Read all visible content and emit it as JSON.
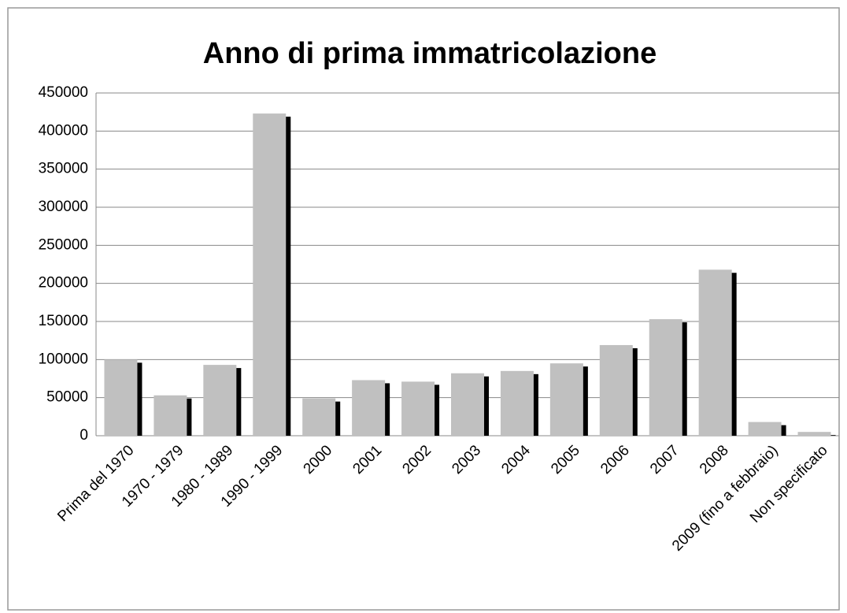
{
  "chart_data": {
    "type": "bar",
    "title": "Anno di prima immatricolazione",
    "categories": [
      "Prima del 1970",
      "1970 - 1979",
      "1980 - 1989",
      "1990 - 1999",
      "2000",
      "2001",
      "2002",
      "2003",
      "2004",
      "2005",
      "2006",
      "2007",
      "2008",
      "2009 (fino a febbraio)",
      "Non specificato"
    ],
    "values": [
      100000,
      53000,
      93000,
      423000,
      49000,
      73000,
      71000,
      82000,
      85000,
      95000,
      119000,
      153000,
      218000,
      18000,
      5000
    ],
    "color": "#c0c0c0",
    "ylim": [
      0,
      450000
    ],
    "yticks": [
      0,
      50000,
      100000,
      150000,
      200000,
      250000,
      300000,
      350000,
      400000,
      450000
    ],
    "grid": true
  }
}
